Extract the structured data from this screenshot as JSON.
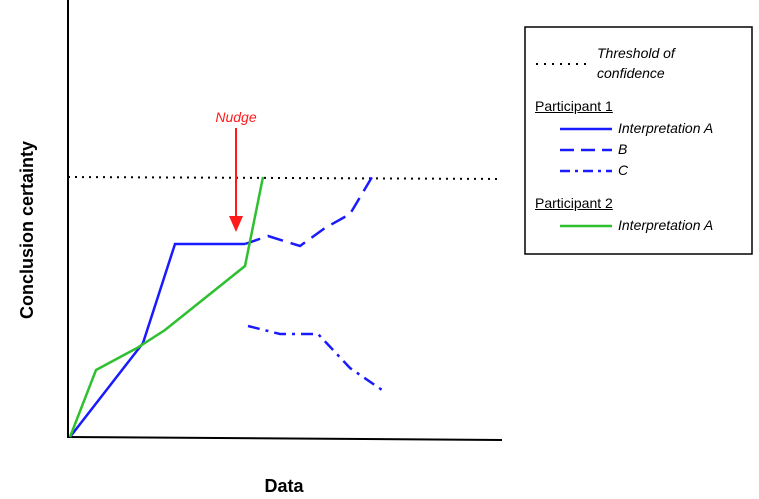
{
  "y_axis_label": "Conclusion certainty",
  "x_axis_label": "Data",
  "annotation": "Nudge",
  "legend": {
    "threshold": "Threshold of confidence",
    "groups": [
      {
        "title": "Participant 1",
        "items": [
          "Interpretation A",
          "B",
          "C"
        ]
      },
      {
        "title": "Participant 2",
        "items": [
          "Interpretation A"
        ]
      }
    ]
  }
}
